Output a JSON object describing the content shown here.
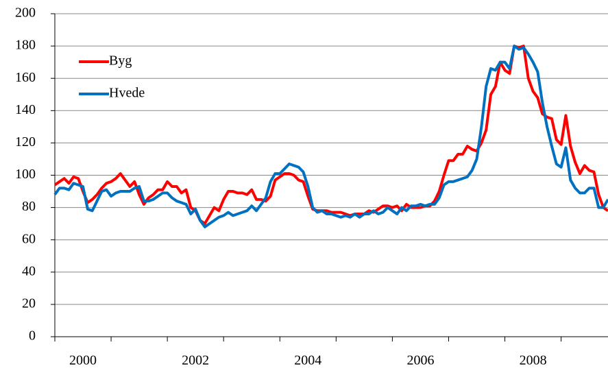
{
  "chart_data": {
    "type": "line",
    "categories": [
      null,
      null,
      null,
      null,
      null,
      null,
      "2000",
      null,
      null,
      null,
      null,
      null,
      null,
      null,
      null,
      null,
      null,
      null,
      null,
      null,
      null,
      null,
      null,
      null,
      null,
      null,
      null,
      null,
      null,
      null,
      "2002",
      null,
      null,
      null,
      null,
      null,
      null,
      null,
      null,
      null,
      null,
      null,
      null,
      null,
      null,
      null,
      null,
      null,
      null,
      null,
      null,
      null,
      null,
      null,
      "2004",
      null,
      null,
      null,
      null,
      null,
      null,
      null,
      null,
      null,
      null,
      null,
      null,
      null,
      null,
      null,
      null,
      null,
      null,
      null,
      null,
      null,
      null,
      null,
      "2006",
      null,
      null,
      null,
      null,
      null,
      null,
      null,
      null,
      null,
      null,
      null,
      null,
      null,
      null,
      null,
      null,
      null,
      null,
      null,
      null,
      null,
      null,
      null,
      "2008",
      null,
      null,
      null,
      null,
      null,
      null,
      null,
      null,
      null,
      null,
      null,
      null,
      null,
      null,
      null,
      null
    ],
    "series": [
      {
        "name": "Byg",
        "color": "#ff0000",
        "values": [
          94,
          96,
          98,
          95,
          99,
          98,
          90,
          83,
          85,
          88,
          92,
          95,
          96,
          98,
          101,
          97,
          93,
          96,
          88,
          82,
          86,
          88,
          91,
          91,
          96,
          93,
          93,
          89,
          91,
          80,
          78,
          72,
          70,
          75,
          80,
          78,
          85,
          90,
          90,
          89,
          89,
          88,
          91,
          85,
          85,
          84,
          87,
          97,
          99,
          101,
          101,
          100,
          97,
          96,
          87,
          79,
          78,
          78,
          78,
          77,
          77,
          77,
          76,
          75,
          76,
          76,
          76,
          78,
          77,
          79,
          81,
          81,
          80,
          81,
          78,
          82,
          80,
          80,
          80,
          81,
          81,
          84,
          90,
          100,
          109,
          109,
          113,
          113,
          118,
          116,
          115,
          120,
          128,
          150,
          155,
          170,
          165,
          163,
          180,
          179,
          180,
          160,
          152,
          148,
          138,
          136,
          135,
          122,
          119,
          137,
          118,
          108,
          101,
          106,
          103,
          102,
          88,
          80,
          78
        ]
      },
      {
        "name": "Hvede",
        "color": "#0070c0",
        "values": [
          88,
          92,
          92,
          91,
          95,
          94,
          93,
          79,
          78,
          84,
          90,
          91,
          87,
          89,
          90,
          90,
          90,
          92,
          93,
          84,
          84,
          85,
          87,
          89,
          89,
          86,
          84,
          83,
          82,
          76,
          79,
          72,
          68,
          70,
          72,
          74,
          75,
          77,
          75,
          76,
          77,
          78,
          81,
          78,
          82,
          86,
          96,
          101,
          101,
          104,
          107,
          106,
          105,
          102,
          93,
          80,
          77,
          78,
          76,
          76,
          75,
          74,
          75,
          74,
          76,
          74,
          76,
          76,
          78,
          76,
          77,
          80,
          78,
          76,
          80,
          78,
          81,
          81,
          82,
          81,
          82,
          82,
          86,
          94,
          96,
          96,
          97,
          98,
          99,
          103,
          110,
          130,
          155,
          166,
          165,
          170,
          170,
          166,
          180,
          178,
          179,
          175,
          170,
          164,
          145,
          130,
          118,
          107,
          105,
          117,
          97,
          92,
          89,
          89,
          92,
          92,
          80,
          80,
          85
        ]
      }
    ],
    "ylim": [
      0,
      200
    ],
    "yticks": [
      0,
      20,
      40,
      60,
      80,
      100,
      120,
      140,
      160,
      180,
      200
    ],
    "grid": true,
    "legend": "upper left"
  }
}
